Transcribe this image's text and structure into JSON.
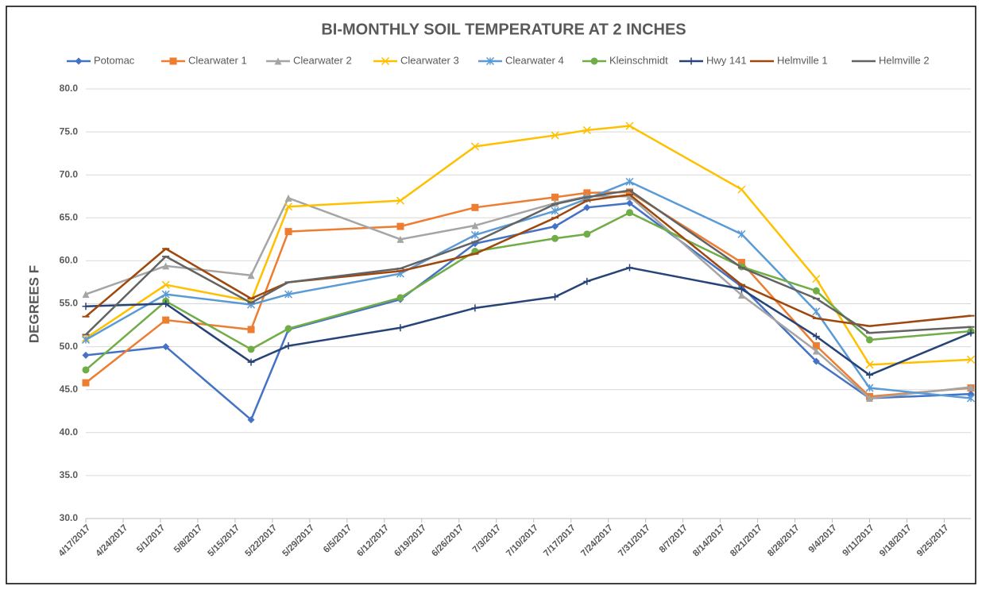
{
  "chart_data": {
    "type": "line",
    "title": "BI-MONTHLY SOIL TEMPERATURE AT 2 INCHES",
    "y_label": "DEGREES  F",
    "x": [
      "4/17/2017",
      "5/2/2017",
      "5/18/2017",
      "5/25/2017",
      "6/15/2017",
      "6/29/2017",
      "7/14/2017",
      "7/20/2017",
      "7/28/2017",
      "8/18/2017",
      "9/1/2017",
      "9/11/2017",
      "9/30/2017"
    ],
    "xlim": [
      "4/17/2017",
      "9/30/2017"
    ],
    "xticks": [
      "4/17/2017",
      "4/24/2017",
      "5/1/2017",
      "5/8/2017",
      "5/15/2017",
      "5/22/2017",
      "5/29/2017",
      "6/5/2017",
      "6/12/2017",
      "6/19/2017",
      "6/26/2017",
      "7/3/2017",
      "7/10/2017",
      "7/17/2017",
      "7/24/2017",
      "7/31/2017",
      "8/7/2017",
      "8/14/2017",
      "8/21/2017",
      "8/28/2017",
      "9/4/2017",
      "9/11/2017",
      "9/18/2017",
      "9/25/2017"
    ],
    "ylim": [
      30,
      80
    ],
    "yticks": [
      {
        "value": 30,
        "label": "30.0"
      },
      {
        "value": 35,
        "label": "35.0"
      },
      {
        "value": 40,
        "label": "40.0"
      },
      {
        "value": 45,
        "label": "45.0"
      },
      {
        "value": 50,
        "label": "50.0"
      },
      {
        "value": 55,
        "label": "55.0"
      },
      {
        "value": 60,
        "label": "60.0"
      },
      {
        "value": 65,
        "label": "65.0"
      },
      {
        "value": 70,
        "label": "70.0"
      },
      {
        "value": 75,
        "label": "75.0"
      },
      {
        "value": 80,
        "label": "80.0"
      }
    ],
    "grid": true,
    "legend": "top",
    "series": [
      {
        "name": "Potomac",
        "color": "#4472c4",
        "marker": "diamond",
        "values": [
          49.0,
          50.0,
          41.5,
          52.0,
          55.5,
          62.0,
          64.0,
          66.2,
          66.7,
          57.0,
          48.3,
          44.0,
          44.5
        ]
      },
      {
        "name": "Clearwater 1",
        "color": "#ed7d31",
        "marker": "square",
        "values": [
          45.8,
          53.1,
          52.0,
          63.4,
          64.0,
          66.2,
          67.4,
          67.9,
          68.0,
          59.8,
          50.1,
          44.2,
          45.2
        ]
      },
      {
        "name": "Clearwater 2",
        "color": "#a5a5a5",
        "marker": "triangle",
        "values": [
          56.1,
          59.4,
          58.3,
          67.3,
          62.5,
          64.1,
          66.7,
          67.5,
          67.5,
          56.0,
          49.5,
          44.0,
          45.3
        ]
      },
      {
        "name": "Clearwater 3",
        "color": "#ffc000",
        "marker": "x",
        "values": [
          51.0,
          57.2,
          55.3,
          66.3,
          67.0,
          73.3,
          74.6,
          75.2,
          75.7,
          68.3,
          57.9,
          47.9,
          48.5
        ]
      },
      {
        "name": "Clearwater 4",
        "color": "#5b9bd5",
        "marker": "star",
        "values": [
          50.8,
          56.1,
          54.9,
          56.1,
          58.5,
          63.0,
          65.8,
          67.2,
          69.2,
          63.1,
          54.1,
          45.2,
          44.0
        ]
      },
      {
        "name": "Kleinschmidt",
        "color": "#70ad47",
        "marker": "circle",
        "values": [
          47.3,
          55.3,
          49.7,
          52.1,
          55.7,
          61.1,
          62.6,
          63.1,
          65.6,
          59.3,
          56.5,
          50.8,
          51.8
        ]
      },
      {
        "name": "Hwy 141",
        "color": "#264478",
        "marker": "plus",
        "values": [
          54.7,
          55.0,
          48.2,
          50.1,
          52.2,
          54.5,
          55.8,
          57.6,
          59.2,
          56.7,
          51.2,
          46.7,
          51.6
        ]
      },
      {
        "name": "Helmville 1",
        "color": "#9e480e",
        "marker": "dash",
        "values": [
          53.5,
          61.4,
          55.6,
          57.5,
          58.8,
          60.8,
          65.0,
          67.0,
          67.7,
          57.2,
          53.3,
          52.4,
          53.6
        ]
      },
      {
        "name": "Helmville 2",
        "color": "#636363",
        "marker": "dash",
        "values": [
          51.4,
          60.5,
          55.1,
          57.5,
          59.1,
          62.2,
          66.6,
          67.4,
          68.2,
          59.2,
          55.6,
          51.6,
          52.3
        ]
      }
    ]
  }
}
